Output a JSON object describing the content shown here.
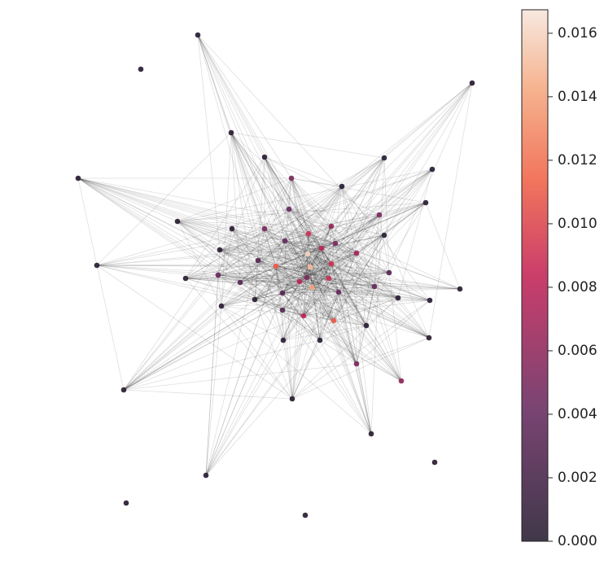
{
  "chart_data": {
    "type": "network",
    "node_values": [
      0.0002,
      0.0002,
      0.0002,
      0.0002,
      0.0002,
      0.0002,
      0.0002,
      0.0002,
      0.005,
      0.0002,
      0.0002,
      0.0002,
      0.004,
      0.005,
      0.006,
      0.009,
      0.0002,
      0.005,
      0.0002,
      0.004,
      0.005,
      0.008,
      0.0002,
      0.007,
      0.0002,
      0.003,
      0.011,
      0.016,
      0.009,
      0.015,
      0.004,
      0.0002,
      0.003,
      0.009,
      0.005,
      0.003,
      0.008,
      0.014,
      0.0002,
      0.004,
      0.004,
      0.003,
      0.0002,
      0.0002,
      0.0002,
      0.0002,
      0.003,
      0.008,
      0.011,
      0.0002,
      0.0002,
      0.0002,
      0.0002,
      0.005,
      0.006,
      0.0002,
      0.0002,
      0.0002,
      0.0002,
      0.0002,
      0.0002,
      0.0002
    ],
    "colorbar": {
      "lim": [
        0,
        0.01674
      ],
      "ticks": [
        {
          "value": 0,
          "label": "0.000"
        },
        0.002,
        0.004,
        0.006,
        0.008,
        {
          "value": 0.01,
          "label": "0.010"
        },
        0.012,
        0.014,
        0.016
      ]
    }
  }
}
